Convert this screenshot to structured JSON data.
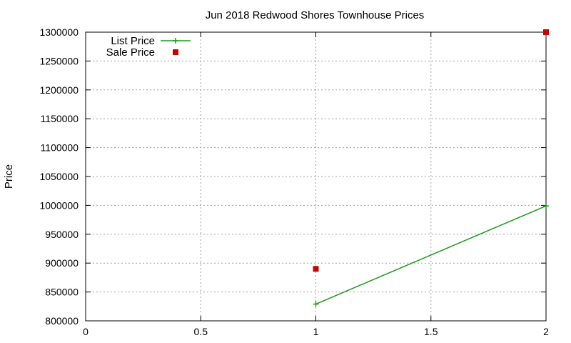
{
  "chart_data": {
    "type": "line",
    "title": "Jun 2018 Redwood Shores Townhouse Prices",
    "xlabel": "",
    "ylabel": "Price",
    "xlim": [
      0,
      2
    ],
    "ylim": [
      800000,
      1300000
    ],
    "xticks": [
      "0",
      "0.5",
      "1",
      "1.5",
      "2"
    ],
    "xtick_values": [
      0,
      0.5,
      1,
      1.5,
      2
    ],
    "yticks": [
      "800000",
      "850000",
      "900000",
      "950000",
      "1000000",
      "1050000",
      "1100000",
      "1150000",
      "1200000",
      "1250000",
      "1300000"
    ],
    "ytick_values": [
      800000,
      850000,
      900000,
      950000,
      1000000,
      1050000,
      1100000,
      1150000,
      1200000,
      1250000,
      1300000
    ],
    "grid": true,
    "legend_position": "top-left",
    "series": [
      {
        "name": "List Price",
        "style": "line-with-plus-markers",
        "color": "#1a9a1a",
        "points": [
          {
            "x": 1,
            "y": 829000
          },
          {
            "x": 2,
            "y": 999000
          }
        ]
      },
      {
        "name": "Sale Price",
        "style": "square-markers",
        "color": "#cc0000",
        "points": [
          {
            "x": 1,
            "y": 890000
          },
          {
            "x": 2,
            "y": 1300000
          }
        ]
      }
    ]
  }
}
